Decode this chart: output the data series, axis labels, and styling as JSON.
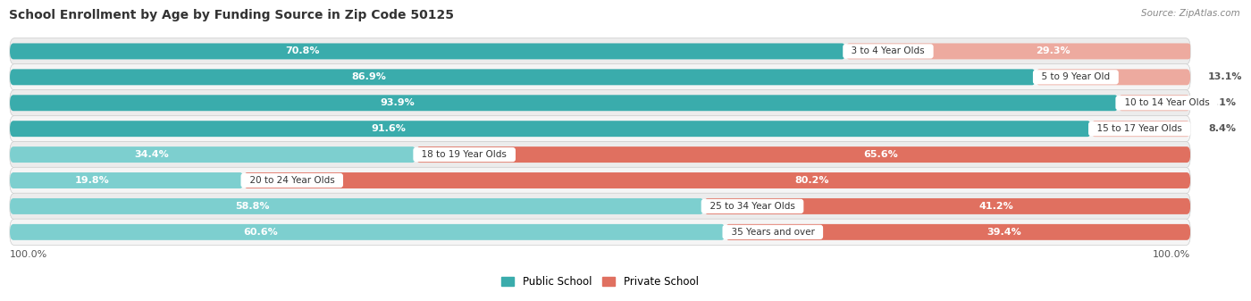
{
  "title": "School Enrollment by Age by Funding Source in Zip Code 50125",
  "source": "Source: ZipAtlas.com",
  "categories": [
    "3 to 4 Year Olds",
    "5 to 9 Year Old",
    "10 to 14 Year Olds",
    "15 to 17 Year Olds",
    "18 to 19 Year Olds",
    "20 to 24 Year Olds",
    "25 to 34 Year Olds",
    "35 Years and over"
  ],
  "public": [
    70.8,
    86.9,
    93.9,
    91.6,
    34.4,
    19.8,
    58.8,
    60.6
  ],
  "private": [
    29.3,
    13.1,
    6.1,
    8.4,
    65.6,
    80.2,
    41.2,
    39.4
  ],
  "public_color_dark": "#3AACAC",
  "public_color_light": "#7DCFCF",
  "private_color_dark": "#E07060",
  "private_color_light": "#EDAA9F",
  "row_colors": [
    "#ECECEC",
    "#F5F5F5"
  ],
  "bg_color": "#FFFFFF",
  "title_fontsize": 10,
  "label_fontsize": 8,
  "bar_height": 0.62,
  "legend_public": "Public School",
  "legend_private": "Private School"
}
